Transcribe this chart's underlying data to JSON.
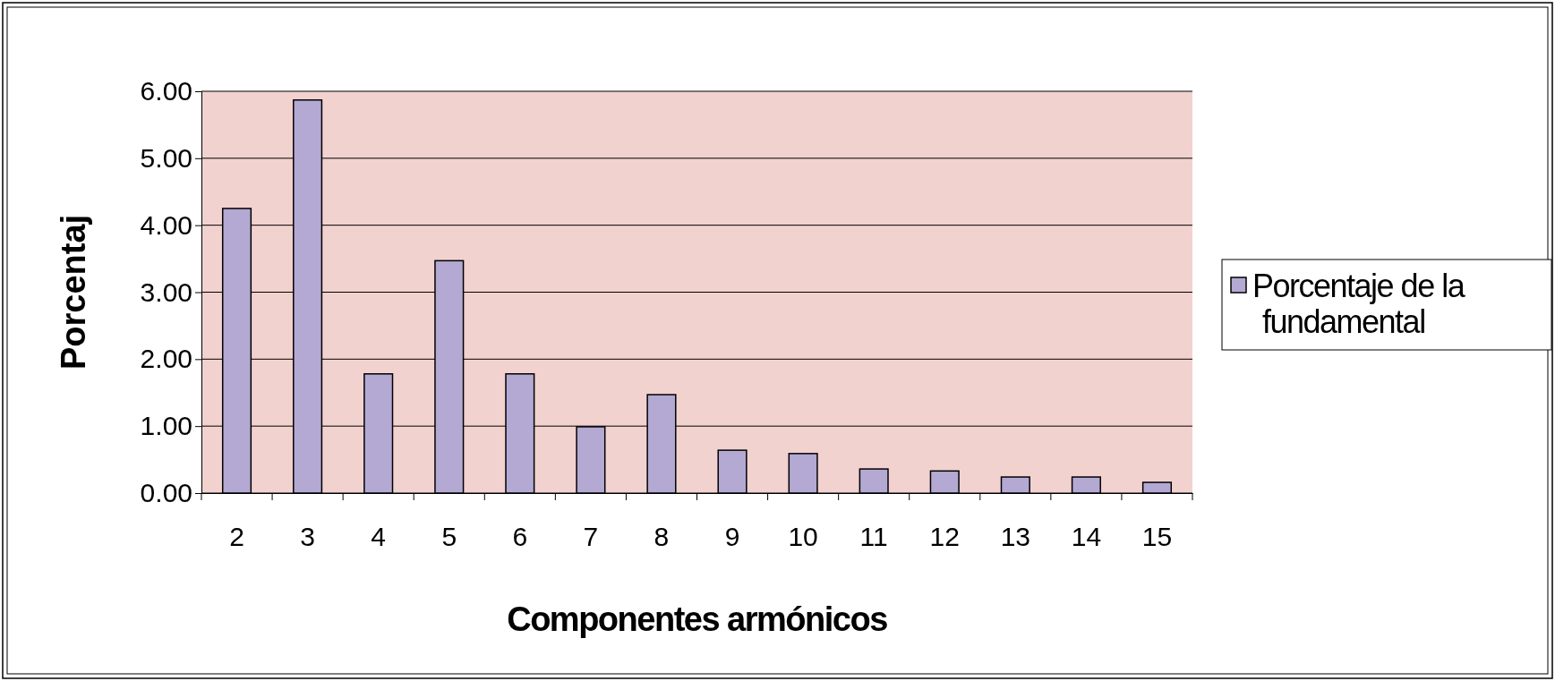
{
  "chart_data": {
    "type": "bar",
    "xlabel": "Componentes armónicos",
    "ylabel": "Porcentaj",
    "categories": [
      "2",
      "3",
      "4",
      "5",
      "6",
      "7",
      "8",
      "9",
      "10",
      "11",
      "12",
      "13",
      "14",
      "15"
    ],
    "series": [
      {
        "name": "Porcentaje de la fundamental",
        "color": "#b3a9d3",
        "values": [
          4.25,
          5.87,
          1.78,
          3.47,
          1.78,
          0.99,
          1.47,
          0.64,
          0.59,
          0.36,
          0.33,
          0.24,
          0.24,
          0.16
        ]
      }
    ],
    "ylim": [
      0,
      6
    ],
    "yticks": [
      {
        "value": 0,
        "label": "0.00"
      },
      {
        "value": 1,
        "label": "1.00"
      },
      {
        "value": 2,
        "label": "2.00"
      },
      {
        "value": 3,
        "label": "3.00"
      },
      {
        "value": 4,
        "label": "4.00"
      },
      {
        "value": 5,
        "label": "5.00"
      },
      {
        "value": 6,
        "label": "6.00"
      }
    ],
    "grid": "y",
    "legend": "right"
  }
}
